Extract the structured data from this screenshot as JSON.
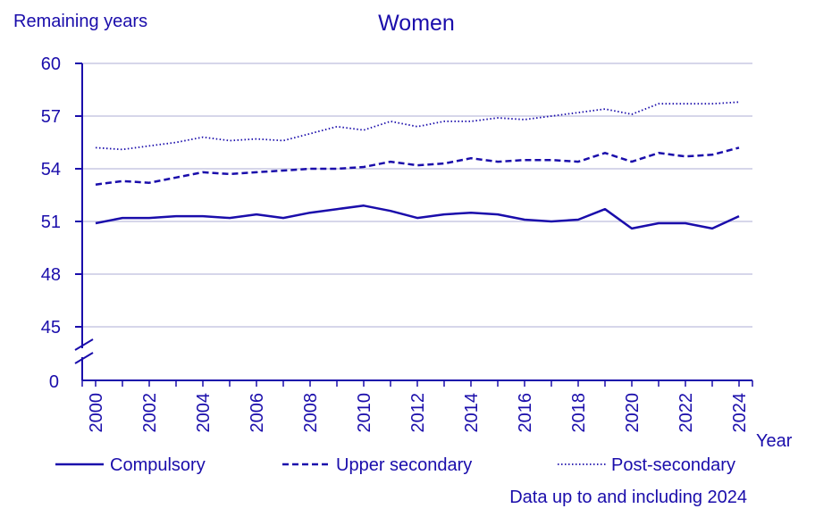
{
  "chart_data": {
    "type": "line",
    "title": "Women",
    "ylabel": "Remaining years",
    "xlabel": "Year",
    "note": "Data up to and including 2024",
    "ylim": [
      45,
      60
    ],
    "yticks": [
      "60",
      "57",
      "54",
      "51",
      "48",
      "45"
    ],
    "ytick_values": [
      60,
      57,
      54,
      51,
      48,
      45
    ],
    "y_break_label": "0",
    "x": [
      2000,
      2001,
      2002,
      2003,
      2004,
      2005,
      2006,
      2007,
      2008,
      2009,
      2010,
      2011,
      2012,
      2013,
      2014,
      2015,
      2016,
      2017,
      2018,
      2019,
      2020,
      2021,
      2022,
      2023,
      2024
    ],
    "xtick_labels": [
      "2000",
      "2002",
      "2004",
      "2006",
      "2008",
      "2010",
      "2012",
      "2014",
      "2016",
      "2018",
      "2020",
      "2022",
      "2024"
    ],
    "series": [
      {
        "name": "Compulsory",
        "style": "solid",
        "values": [
          50.9,
          51.2,
          51.2,
          51.3,
          51.3,
          51.2,
          51.4,
          51.2,
          51.5,
          51.7,
          51.9,
          51.6,
          51.2,
          51.4,
          51.5,
          51.4,
          51.1,
          51.0,
          51.1,
          51.7,
          50.6,
          50.9,
          50.9,
          50.6,
          51.3
        ]
      },
      {
        "name": "Upper secondary",
        "style": "dashed",
        "values": [
          53.1,
          53.3,
          53.2,
          53.5,
          53.8,
          53.7,
          53.8,
          53.9,
          54.0,
          54.0,
          54.1,
          54.4,
          54.2,
          54.3,
          54.6,
          54.4,
          54.5,
          54.5,
          54.4,
          54.9,
          54.4,
          54.9,
          54.7,
          54.8,
          55.2
        ]
      },
      {
        "name": "Post-secondary",
        "style": "dotted",
        "values": [
          55.2,
          55.1,
          55.3,
          55.5,
          55.8,
          55.6,
          55.7,
          55.6,
          56.0,
          56.4,
          56.2,
          56.7,
          56.4,
          56.7,
          56.7,
          56.9,
          56.8,
          57.0,
          57.2,
          57.4,
          57.1,
          57.7,
          57.7,
          57.7,
          57.8
        ]
      }
    ],
    "colors": {
      "line": "#1a0dab",
      "grid": "#c9c9e4",
      "axis": "#1a0dab"
    }
  }
}
